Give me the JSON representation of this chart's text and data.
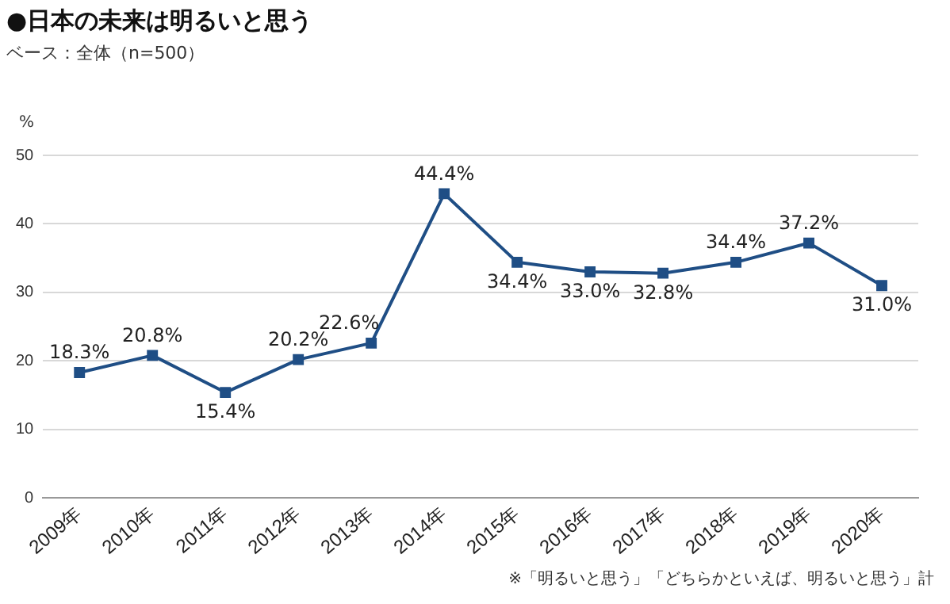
{
  "chart_data": {
    "type": "line",
    "title": "●日本の未来は明るいと思う",
    "subtitle": "ベース：全体（n=500）",
    "ylabel": "%",
    "categories": [
      "2009年",
      "2010年",
      "2011年",
      "2012年",
      "2013年",
      "2014年",
      "2015年",
      "2016年",
      "2017年",
      "2018年",
      "2019年",
      "2020年"
    ],
    "series": [
      {
        "color": "#1f4e85",
        "values": [
          18.3,
          20.8,
          15.4,
          20.2,
          22.6,
          44.4,
          34.4,
          33.0,
          32.8,
          34.4,
          37.2,
          31.0
        ],
        "value_labels": [
          "18.3%",
          "20.8%",
          "15.4%",
          "20.2%",
          "22.6%",
          "44.4%",
          "34.4%",
          "33.0%",
          "32.8%",
          "34.4%",
          "37.2%",
          "31.0%"
        ]
      }
    ],
    "ylim": [
      0,
      50
    ],
    "yticks": [
      0,
      10,
      20,
      30,
      40,
      50
    ],
    "grid": "y",
    "legend": false,
    "marker": "square",
    "line_style": "solid",
    "annotations": [
      "※「明るいと思う」「どちらかといえば、明るいと思う」計"
    ]
  }
}
